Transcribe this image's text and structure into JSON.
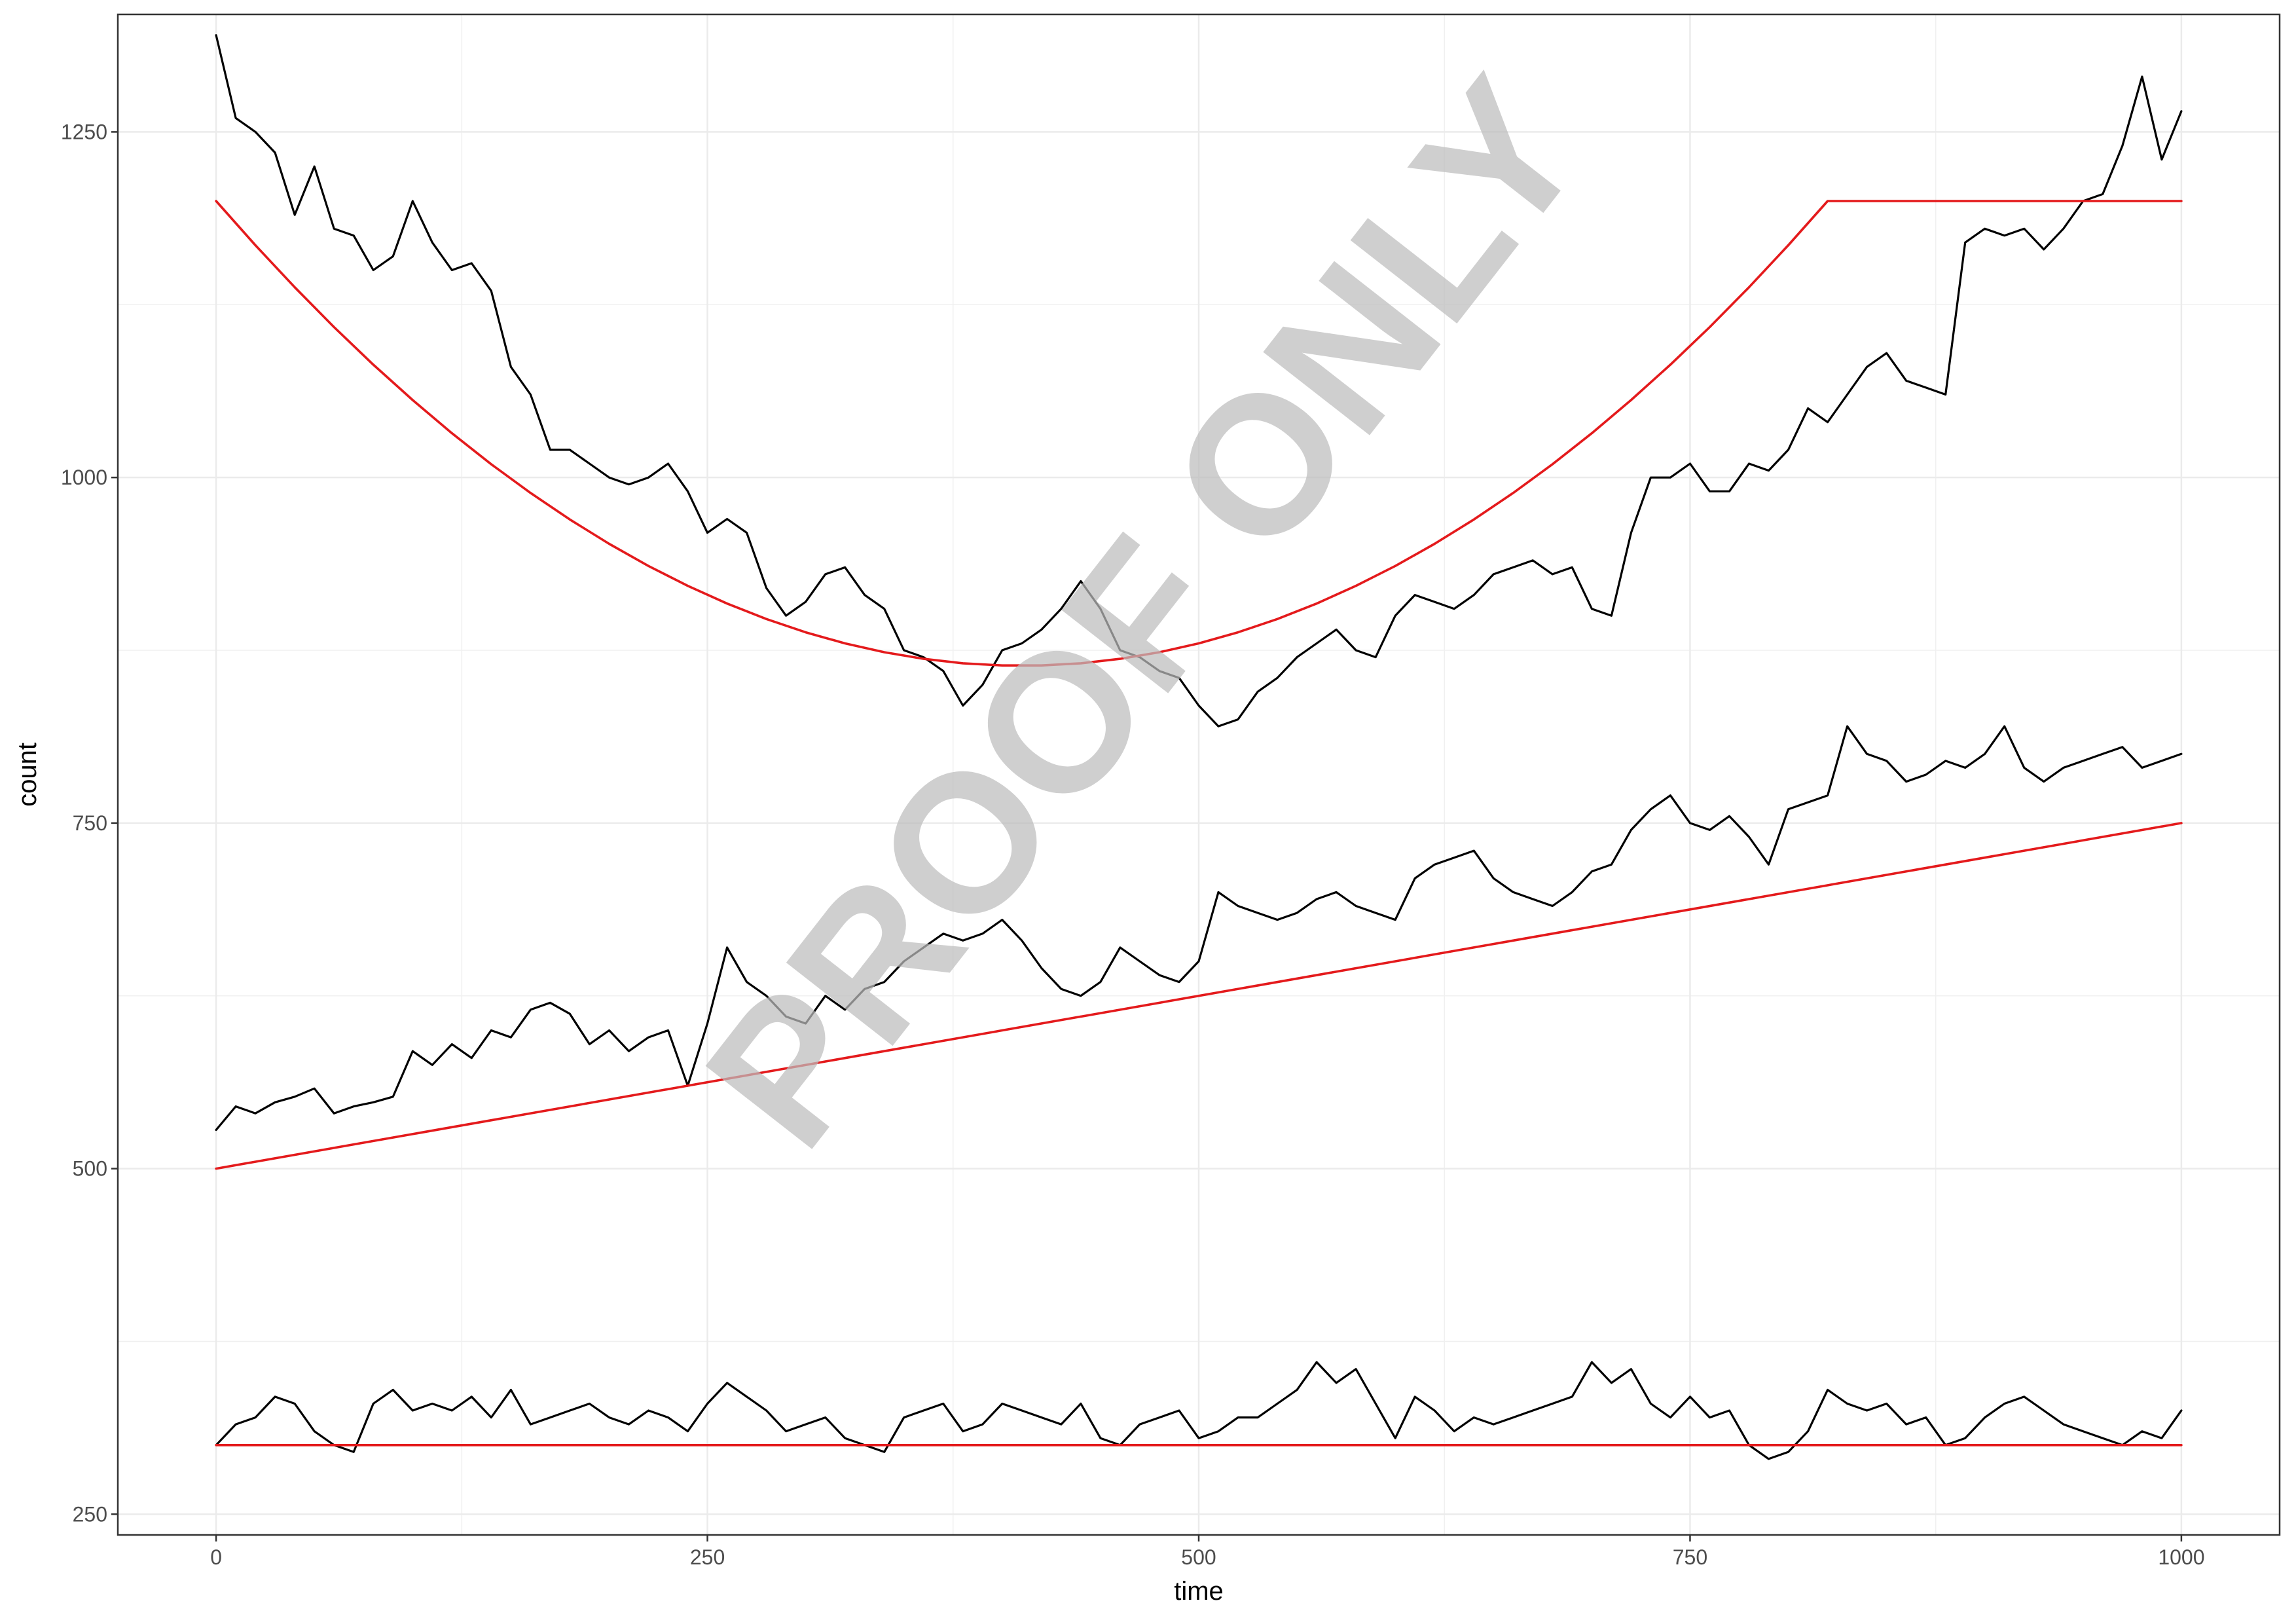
{
  "chart_data": {
    "type": "line",
    "xlabel": "time",
    "ylabel": "count",
    "xlim": [
      -50,
      1050
    ],
    "ylim": [
      235,
      1335
    ],
    "x_ticks": [
      0,
      250,
      500,
      750,
      1000
    ],
    "x_tick_labels": [
      "0",
      "250",
      "500",
      "750",
      "1000"
    ],
    "y_ticks": [
      250,
      500,
      750,
      1000,
      1250
    ],
    "y_tick_labels": [
      "250",
      "500",
      "750",
      "1000",
      "1250"
    ],
    "grid": true,
    "legend": "none",
    "line_colors": [
      "#000000",
      "#e41a1c"
    ],
    "watermark": "PROOF ONLY",
    "series": [
      {
        "color": "#000000",
        "x": [
          0,
          10,
          20,
          30,
          40,
          50,
          60,
          70,
          80,
          90,
          100,
          110,
          120,
          130,
          140,
          150,
          160,
          170,
          180,
          190,
          200,
          210,
          220,
          230,
          240,
          250,
          260,
          270,
          280,
          290,
          300,
          310,
          320,
          330,
          340,
          350,
          360,
          370,
          380,
          390,
          400,
          410,
          420,
          430,
          440,
          450,
          460,
          470,
          480,
          490,
          500,
          510,
          520,
          530,
          540,
          550,
          560,
          570,
          580,
          590,
          600,
          610,
          620,
          630,
          640,
          650,
          660,
          670,
          680,
          690,
          700,
          710,
          720,
          730,
          740,
          750,
          760,
          770,
          780,
          790,
          800,
          810,
          820,
          830,
          840,
          850,
          860,
          870,
          880,
          890,
          900,
          910,
          920,
          930,
          940,
          950,
          960,
          970,
          980,
          990,
          1000
        ],
        "values": [
          1320,
          1260,
          1250,
          1235,
          1190,
          1225,
          1180,
          1175,
          1150,
          1160,
          1200,
          1170,
          1150,
          1155,
          1135,
          1080,
          1060,
          1020,
          1020,
          1010,
          1000,
          995,
          1000,
          1010,
          990,
          960,
          970,
          960,
          920,
          900,
          910,
          930,
          935,
          915,
          905,
          875,
          870,
          860,
          835,
          850,
          875,
          880,
          890,
          905,
          925,
          905,
          875,
          870,
          860,
          855,
          835,
          820,
          825,
          845,
          855,
          870,
          880,
          890,
          875,
          870,
          900,
          915,
          910,
          905,
          915,
          930,
          935,
          940,
          930,
          935,
          905,
          900,
          960,
          1000,
          1000,
          1010,
          990,
          990,
          1010,
          1005,
          1020,
          1050,
          1040,
          1060,
          1080,
          1090,
          1070,
          1065,
          1060,
          1170,
          1180,
          1175,
          1180,
          1165,
          1180,
          1200,
          1205,
          1240,
          1290,
          1230,
          1265
        ]
      },
      {
        "color": "#000000",
        "x": [
          0,
          10,
          20,
          30,
          40,
          50,
          60,
          70,
          80,
          90,
          100,
          110,
          120,
          130,
          140,
          150,
          160,
          170,
          180,
          190,
          200,
          210,
          220,
          230,
          240,
          250,
          260,
          270,
          280,
          290,
          300,
          310,
          320,
          330,
          340,
          350,
          360,
          370,
          380,
          390,
          400,
          410,
          420,
          430,
          440,
          450,
          460,
          470,
          480,
          490,
          500,
          510,
          520,
          530,
          540,
          550,
          560,
          570,
          580,
          590,
          600,
          610,
          620,
          630,
          640,
          650,
          660,
          670,
          680,
          690,
          700,
          710,
          720,
          730,
          740,
          750,
          760,
          770,
          780,
          790,
          800,
          810,
          820,
          830,
          840,
          850,
          860,
          870,
          880,
          890,
          900,
          910,
          920,
          930,
          940,
          950,
          960,
          970,
          980,
          990,
          1000
        ],
        "values": [
          528,
          545,
          540,
          548,
          552,
          558,
          540,
          545,
          548,
          552,
          585,
          575,
          590,
          580,
          600,
          595,
          615,
          620,
          612,
          590,
          600,
          585,
          595,
          600,
          560,
          605,
          660,
          635,
          625,
          610,
          605,
          625,
          615,
          630,
          635,
          650,
          660,
          670,
          665,
          670,
          680,
          665,
          645,
          630,
          625,
          635,
          660,
          650,
          640,
          635,
          650,
          700,
          690,
          685,
          680,
          685,
          695,
          700,
          690,
          685,
          680,
          710,
          720,
          725,
          730,
          710,
          700,
          695,
          690,
          700,
          715,
          720,
          745,
          760,
          770,
          750,
          745,
          755,
          740,
          720,
          760,
          765,
          770,
          820,
          800,
          795,
          780,
          785,
          795,
          790,
          800,
          820,
          790,
          780,
          790,
          795,
          800,
          805,
          790,
          795,
          800
        ]
      },
      {
        "color": "#000000",
        "x": [
          0,
          10,
          20,
          30,
          40,
          50,
          60,
          70,
          80,
          90,
          100,
          110,
          120,
          130,
          140,
          150,
          160,
          170,
          180,
          190,
          200,
          210,
          220,
          230,
          240,
          250,
          260,
          270,
          280,
          290,
          300,
          310,
          320,
          330,
          340,
          350,
          360,
          370,
          380,
          390,
          400,
          410,
          420,
          430,
          440,
          450,
          460,
          470,
          480,
          490,
          500,
          510,
          520,
          530,
          540,
          550,
          560,
          570,
          580,
          590,
          600,
          610,
          620,
          630,
          640,
          650,
          660,
          670,
          680,
          690,
          700,
          710,
          720,
          730,
          740,
          750,
          760,
          770,
          780,
          790,
          800,
          810,
          820,
          830,
          840,
          850,
          860,
          870,
          880,
          890,
          900,
          910,
          920,
          930,
          940,
          950,
          960,
          970,
          980,
          990,
          1000
        ],
        "values": [
          300,
          315,
          320,
          335,
          330,
          310,
          300,
          295,
          330,
          340,
          325,
          330,
          325,
          335,
          320,
          340,
          315,
          320,
          325,
          330,
          320,
          315,
          325,
          320,
          310,
          330,
          345,
          335,
          325,
          310,
          315,
          320,
          305,
          300,
          295,
          320,
          325,
          330,
          310,
          315,
          330,
          325,
          320,
          315,
          330,
          305,
          300,
          315,
          320,
          325,
          305,
          310,
          320,
          320,
          330,
          340,
          360,
          345,
          355,
          330,
          305,
          335,
          325,
          310,
          320,
          315,
          320,
          325,
          330,
          335,
          360,
          345,
          355,
          330,
          320,
          335,
          320,
          325,
          300,
          290,
          295,
          310,
          340,
          330,
          325,
          330,
          315,
          320,
          300,
          305,
          320,
          330,
          335,
          325,
          315,
          310,
          305,
          300,
          310,
          305,
          325
        ]
      },
      {
        "color": "#e41a1c",
        "x": [
          0,
          20,
          40,
          60,
          80,
          100,
          120,
          140,
          160,
          180,
          200,
          220,
          240,
          260,
          280,
          300,
          320,
          340,
          360,
          380,
          400,
          420,
          440,
          460,
          480,
          500,
          520,
          540,
          560,
          580,
          600,
          620,
          640,
          660,
          680,
          700,
          720,
          740,
          760,
          780,
          800,
          820,
          840,
          860,
          880,
          900,
          920,
          940,
          960,
          980,
          1000
        ],
        "values": [
          1200,
          1168.0,
          1137.6,
          1108.8,
          1081.6,
          1056.0,
          1032.0,
          1009.6,
          988.8,
          969.6,
          952.0,
          936.0,
          921.6,
          908.8,
          897.6,
          888.0,
          880.0,
          873.6,
          868.8,
          865.6,
          864.0,
          864.0,
          865.6,
          868.8,
          873.6,
          880.0,
          888.0,
          897.6,
          908.8,
          921.6,
          936.0,
          952.0,
          969.6,
          988.8,
          1009.6,
          1032.0,
          1056.0,
          1081.6,
          1108.8,
          1137.6,
          1168.0,
          1200,
          1200,
          1200,
          1200,
          1200,
          1200,
          1200,
          1200,
          1200,
          1200
        ]
      },
      {
        "color": "#e41a1c",
        "x": [
          0,
          1000
        ],
        "values": [
          500,
          750
        ]
      },
      {
        "color": "#e41a1c",
        "x": [
          0,
          1000
        ],
        "values": [
          300,
          300
        ]
      }
    ]
  }
}
